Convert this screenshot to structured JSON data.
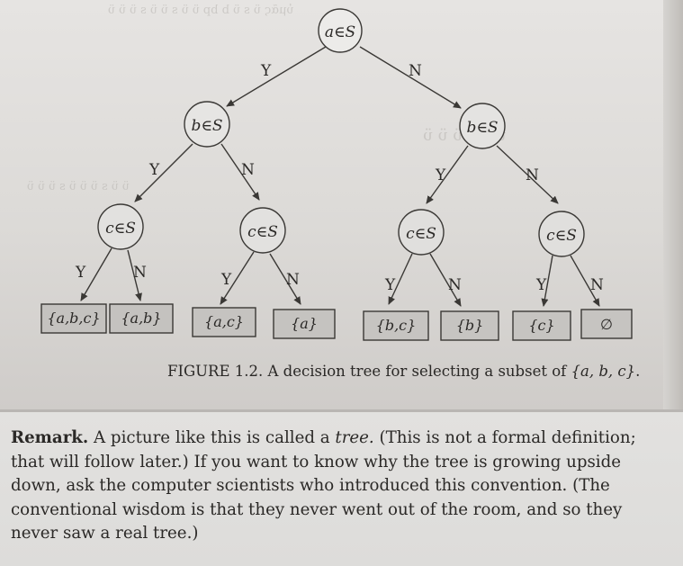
{
  "tree": {
    "root": {
      "label": "a∈S"
    },
    "level2": [
      {
        "label": "b∈S"
      },
      {
        "label": "b∈S"
      }
    ],
    "level3": [
      {
        "label": "c∈S"
      },
      {
        "label": "c∈S"
      },
      {
        "label": "c∈S"
      },
      {
        "label": "c∈S"
      }
    ],
    "edge_yes": "Y",
    "edge_no": "N",
    "leaves": [
      "{a,b,c}",
      "{a,b}",
      "{a,c}",
      "{a}",
      "{b,c}",
      "{b}",
      "{c}",
      "∅"
    ]
  },
  "caption": {
    "prefix": "FIGURE 1.2. A decision tree for selecting a subset of ",
    "set": "{a, b, c}",
    "suffix": "."
  },
  "remark": {
    "heading": "Remark.",
    "l1_before": " A picture like this is called a ",
    "l1_term": "tree.",
    "l1_after": " (This is not a formal definition;",
    "l2": "that will follow later.) If you want to know why the tree is growing upside",
    "l3": "down, ask the computer scientists who introduced this convention. (The",
    "l4": "conventional wisdom is that they never went out of the room, and so they",
    "l5": "never saw a real tree.)"
  }
}
